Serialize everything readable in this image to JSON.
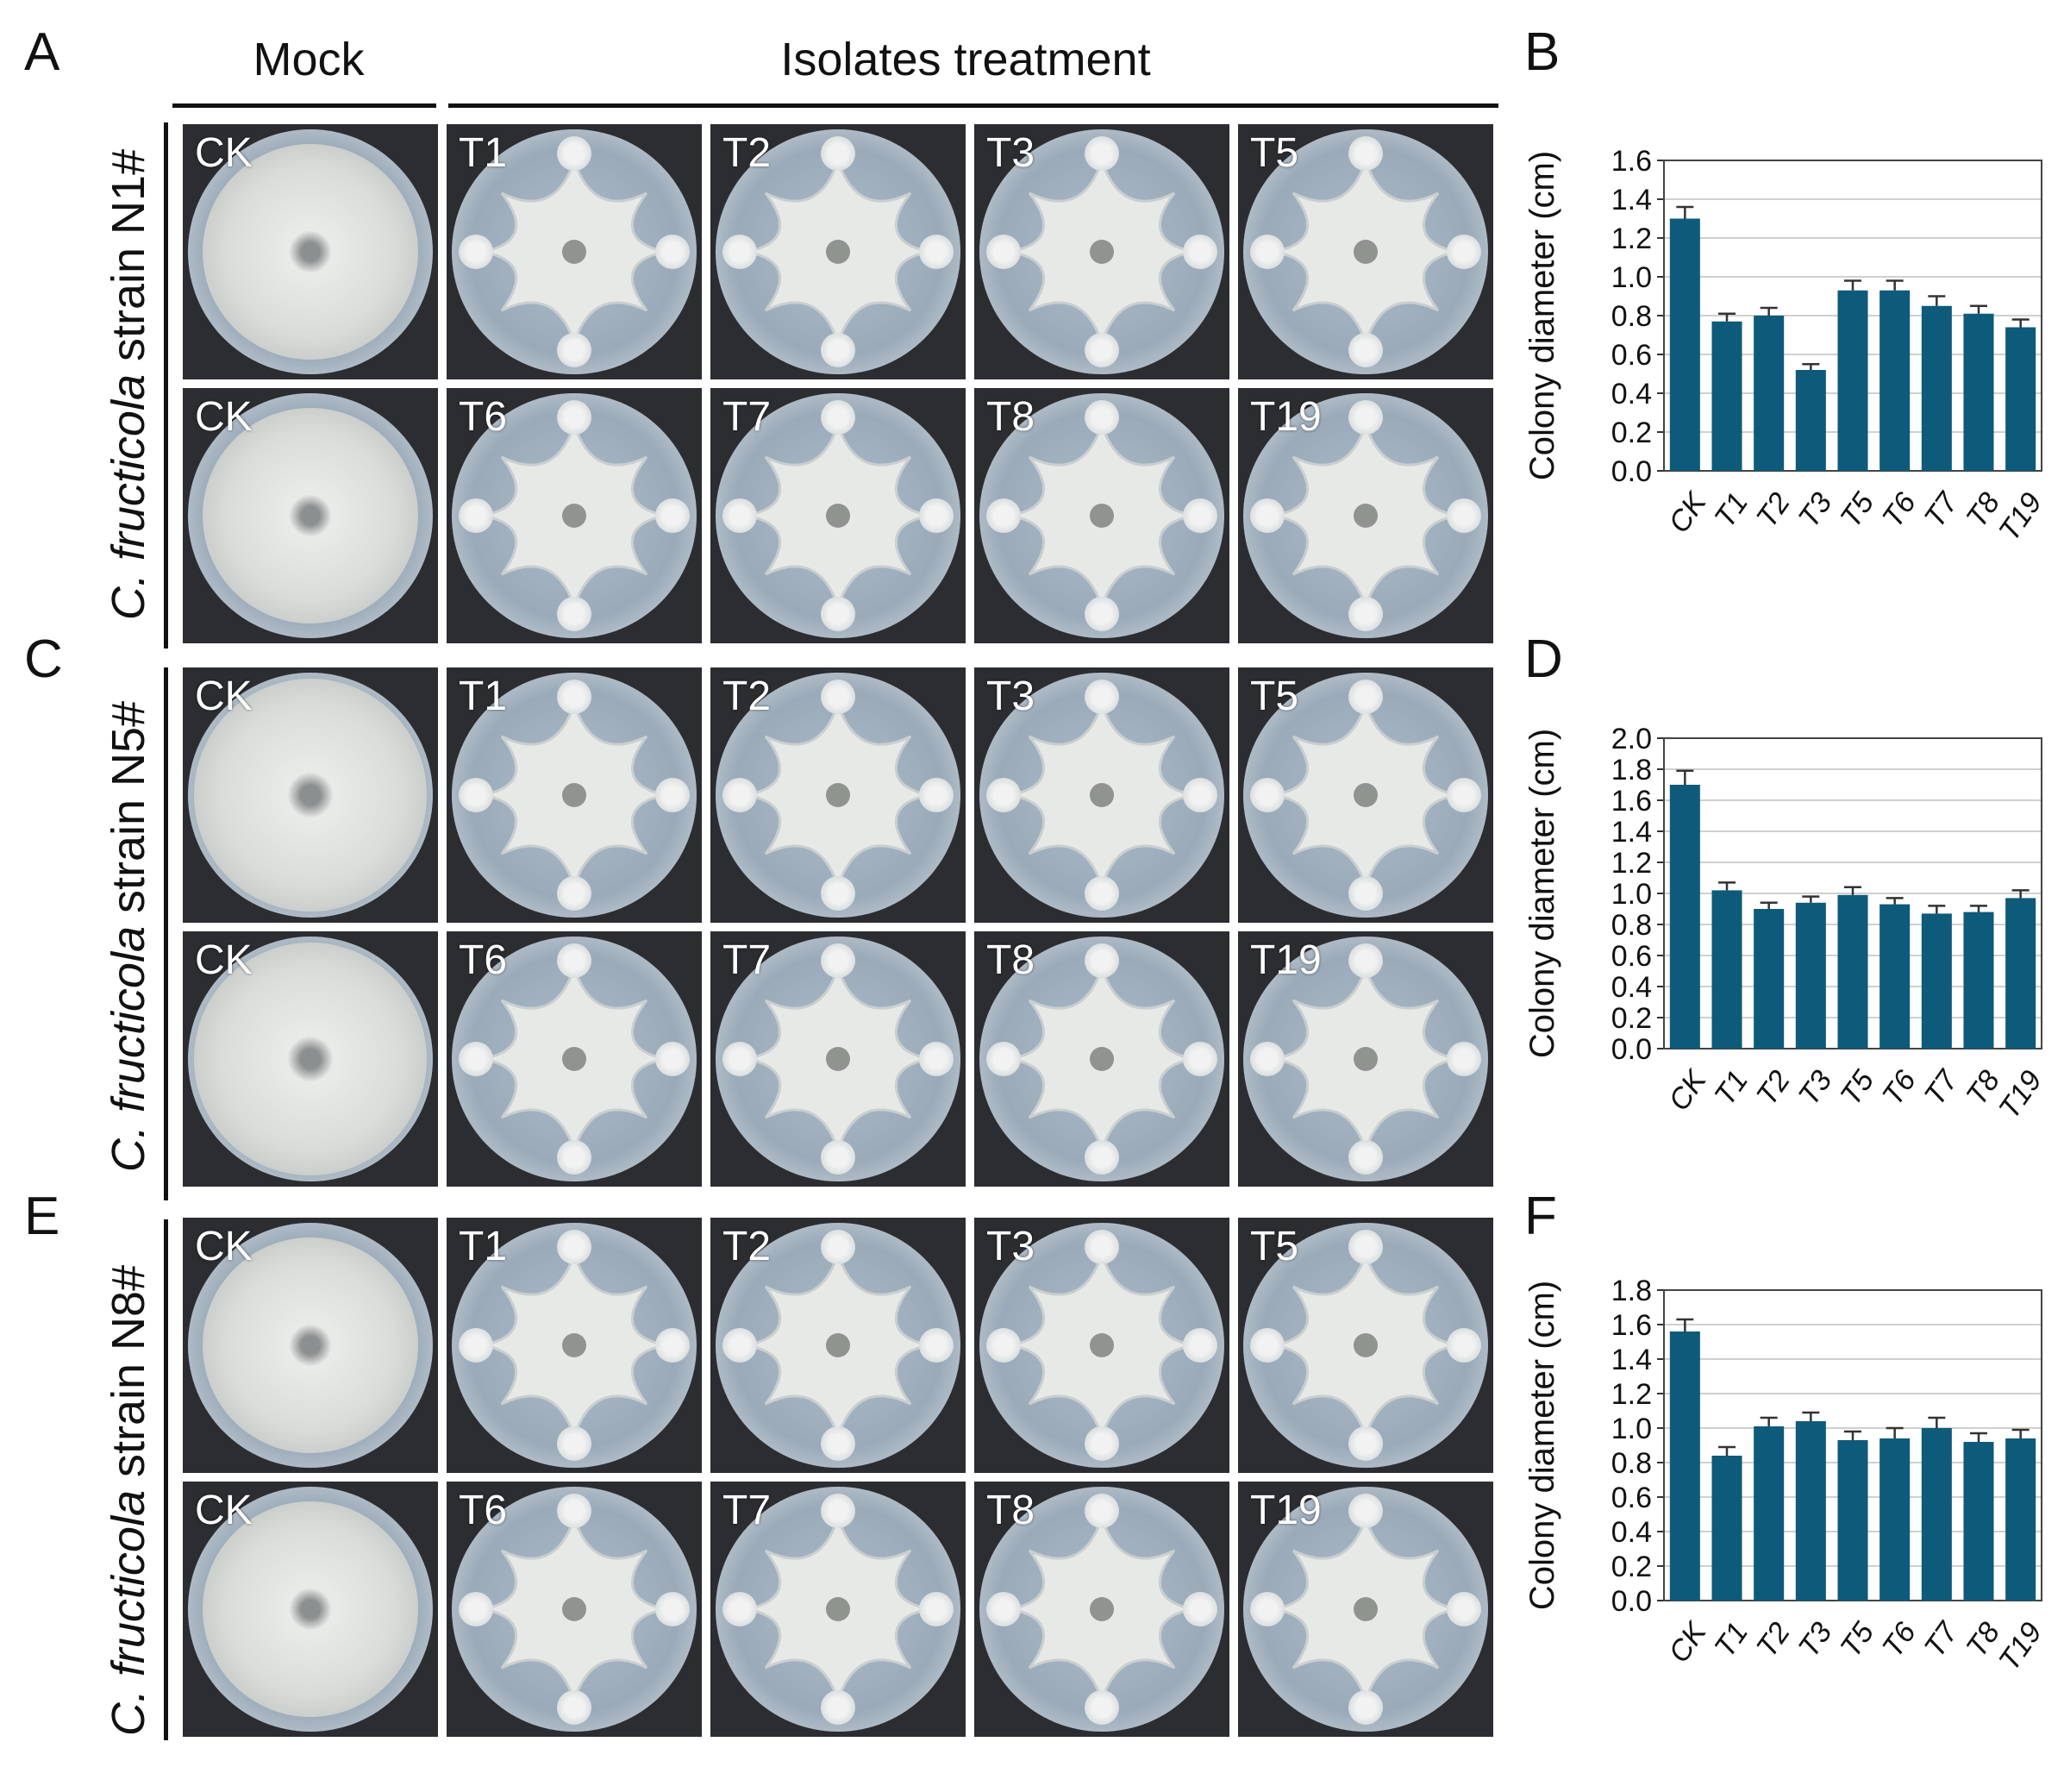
{
  "header": {
    "mock_label": "Mock",
    "treatment_label": "Isolates treatment"
  },
  "panels": [
    {
      "letter": "A",
      "strain_italic": "C. fructicola",
      "strain_suffix": " strain N1#",
      "rows": [
        [
          "CK",
          "T1",
          "T2",
          "T3",
          "T5"
        ],
        [
          "CK",
          "T6",
          "T7",
          "T8",
          "T19"
        ]
      ]
    },
    {
      "letter": "C",
      "strain_italic": "C. fructicola",
      "strain_suffix": " strain N5#",
      "rows": [
        [
          "CK",
          "T1",
          "T2",
          "T3",
          "T5"
        ],
        [
          "CK",
          "T6",
          "T7",
          "T8",
          "T19"
        ]
      ]
    },
    {
      "letter": "E",
      "strain_italic": "C. fructicola",
      "strain_suffix": " strain N8#",
      "rows": [
        [
          "CK",
          "T1",
          "T2",
          "T3",
          "T5"
        ],
        [
          "CK",
          "T6",
          "T7",
          "T8",
          "T19"
        ]
      ]
    }
  ],
  "colors": {
    "bar": "#0e5a7a",
    "grid": "#d0d0d0",
    "plate_medium": "#a6b6c4",
    "mycelium": "#e6e8e6"
  },
  "chart_data": [
    {
      "panel": "B",
      "type": "bar",
      "categories": [
        "CK",
        "T1",
        "T2",
        "T3",
        "T5",
        "T6",
        "T7",
        "T8",
        "T19"
      ],
      "values": [
        1.3,
        0.77,
        0.8,
        0.52,
        0.93,
        0.93,
        0.85,
        0.81,
        0.74
      ],
      "errors": [
        0.06,
        0.04,
        0.04,
        0.03,
        0.05,
        0.05,
        0.05,
        0.04,
        0.04
      ],
      "ylabel": "Colony diameter (cm)",
      "ylim": [
        0,
        1.6
      ],
      "ticks": [
        "0.0",
        "0.2",
        "0.4",
        "0.6",
        "0.8",
        "1.0",
        "1.2",
        "1.4",
        "1.6"
      ],
      "grid": true
    },
    {
      "panel": "D",
      "type": "bar",
      "categories": [
        "CK",
        "T1",
        "T2",
        "T3",
        "T5",
        "T6",
        "T7",
        "T8",
        "T19"
      ],
      "values": [
        1.7,
        1.02,
        0.9,
        0.94,
        0.99,
        0.93,
        0.87,
        0.88,
        0.97
      ],
      "errors": [
        0.09,
        0.05,
        0.04,
        0.04,
        0.05,
        0.04,
        0.05,
        0.04,
        0.05
      ],
      "ylabel": "Colony diameter (cm)",
      "ylim": [
        0,
        2.0
      ],
      "ticks": [
        "0.0",
        "0.2",
        "0.4",
        "0.6",
        "0.8",
        "1.0",
        "1.2",
        "1.4",
        "1.6",
        "1.8",
        "2.0"
      ],
      "grid": true
    },
    {
      "panel": "F",
      "type": "bar",
      "categories": [
        "CK",
        "T1",
        "T2",
        "T3",
        "T5",
        "T6",
        "T7",
        "T8",
        "T19"
      ],
      "values": [
        1.56,
        0.84,
        1.01,
        1.04,
        0.93,
        0.94,
        1.0,
        0.92,
        0.94
      ],
      "errors": [
        0.07,
        0.05,
        0.05,
        0.05,
        0.05,
        0.06,
        0.06,
        0.05,
        0.05
      ],
      "ylabel": "Colony diameter (cm)",
      "ylim": [
        0,
        1.8
      ],
      "ticks": [
        "0.0",
        "0.2",
        "0.4",
        "0.6",
        "0.8",
        "1.0",
        "1.2",
        "1.4",
        "1.6",
        "1.8"
      ],
      "grid": true
    }
  ]
}
